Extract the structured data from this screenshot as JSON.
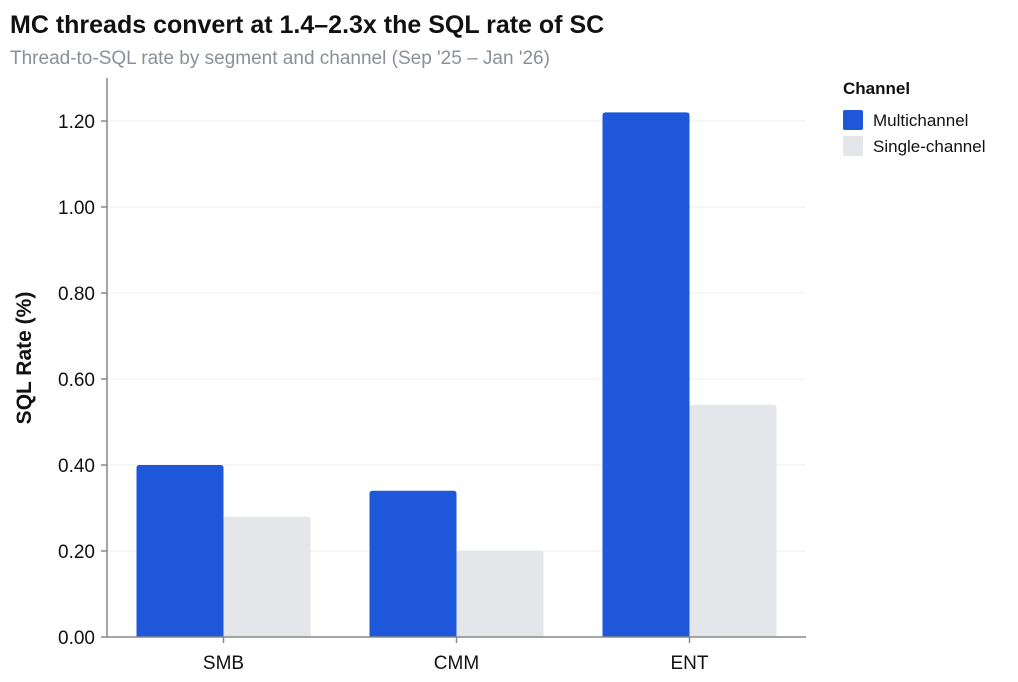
{
  "chart_data": {
    "type": "bar",
    "title": "MC threads convert at 1.4–2.3x the SQL rate of SC",
    "subtitle": "Thread-to-SQL rate by segment and channel (Sep '25 – Jan '26)",
    "xlabel": "",
    "ylabel": "SQL Rate (%)",
    "categories": [
      "SMB",
      "CMM",
      "ENT"
    ],
    "series": [
      {
        "name": "Multichannel",
        "values": [
          0.4,
          0.34,
          1.22
        ],
        "color": "#1f57db"
      },
      {
        "name": "Single-channel",
        "values": [
          0.28,
          0.2,
          0.54
        ],
        "color": "#e5e6e9"
      }
    ],
    "ylim": [
      0,
      1.3
    ],
    "yticks": [
      "0.00",
      "0.20",
      "0.40",
      "0.60",
      "0.80",
      "1.00",
      "1.20"
    ],
    "grid": true,
    "legend": {
      "title": "Channel",
      "position": "top-right"
    }
  }
}
